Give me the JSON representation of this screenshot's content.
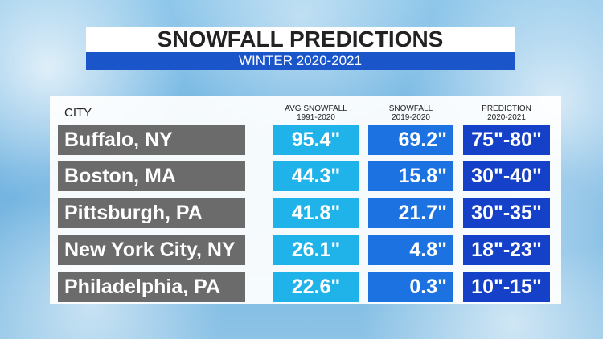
{
  "header": {
    "title": "SNOWFALL PREDICTIONS",
    "subtitle": "WINTER 2020-2021"
  },
  "table": {
    "columns": [
      {
        "title": "CITY"
      },
      {
        "title": "AVG SNOWFALL",
        "subtitle": "1991-2020"
      },
      {
        "title": "SNOWFALL",
        "subtitle": "2019-2020"
      },
      {
        "title": "PREDICTION",
        "subtitle": "2020-2021"
      }
    ],
    "rows": [
      [
        "Buffalo, NY",
        "95.4\"",
        "69.2\"",
        "75\"-80\""
      ],
      [
        "Boston, MA",
        "44.3\"",
        "15.8\"",
        "30\"-40\""
      ],
      [
        "Pittsburgh, PA",
        "41.8\"",
        "21.7\"",
        "30\"-35\""
      ],
      [
        "New York City, NY",
        "26.1\"",
        "4.8\"",
        "18\"-23\""
      ],
      [
        "Philadelphia, PA",
        "22.6\"",
        "0.3\"",
        "10\"-15\""
      ]
    ]
  }
}
